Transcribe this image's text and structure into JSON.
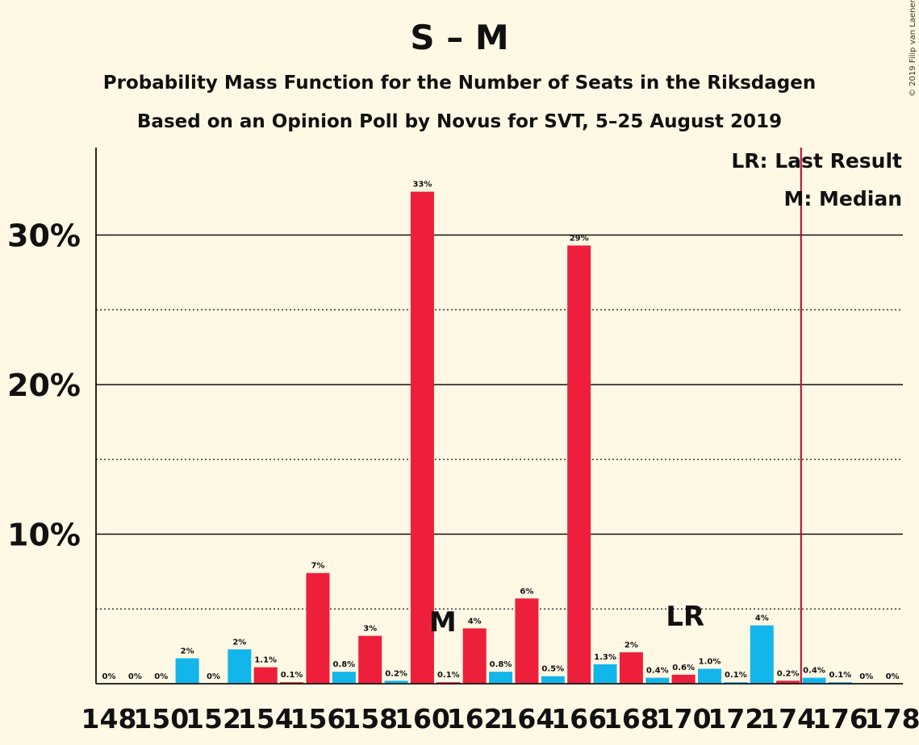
{
  "title": "S – M",
  "subtitle1": "Probability Mass Function for the Number of Seats in the Riksdagen",
  "subtitle2": "Based on an Opinion Poll by Novus for SVT, 5–25 August 2019",
  "copyright": "© 2019 Filip van Laenen",
  "legend": {
    "last_result": "LR: Last Result",
    "median": "M: Median"
  },
  "colors": {
    "background": "#FFF8E4",
    "bar_red": "#EE1F3A",
    "bar_blue": "#12B6EA",
    "marker_line": "#C2002E",
    "text": "#111111"
  },
  "chart_data": {
    "type": "bar",
    "xlabel": "",
    "ylabel": "",
    "ylim": [
      0,
      35
    ],
    "y_ticks": [
      10,
      20,
      30
    ],
    "y_tick_labels": [
      "10%",
      "20%",
      "30%"
    ],
    "y_minor_gridlines": [
      5,
      15,
      25
    ],
    "x_tick_labels": [
      "148",
      "150",
      "152",
      "154",
      "156",
      "158",
      "160",
      "162",
      "164",
      "166",
      "168",
      "170",
      "172",
      "174",
      "176",
      "178"
    ],
    "categories": [
      148,
      149,
      150,
      151,
      152,
      153,
      154,
      155,
      156,
      157,
      158,
      159,
      160,
      161,
      162,
      163,
      164,
      165,
      166,
      167,
      168,
      169,
      170,
      171,
      172,
      173,
      174,
      175,
      176,
      177,
      178
    ],
    "values": [
      0,
      0,
      0,
      1.7,
      0,
      2.3,
      1.1,
      0.1,
      7.4,
      0.8,
      3.2,
      0.2,
      32.9,
      0.1,
      3.7,
      0.8,
      5.7,
      0.5,
      29.3,
      1.3,
      2.1,
      0.4,
      0.6,
      1.0,
      0.1,
      3.9,
      0.2,
      0.4,
      0.1,
      0,
      0
    ],
    "labels": [
      "0%",
      "0%",
      "0%",
      "2%",
      "0%",
      "2%",
      "1.1%",
      "0.1%",
      "7%",
      "0.8%",
      "3%",
      "0.2%",
      "33%",
      "0.1%",
      "4%",
      "0.8%",
      "6%",
      "0.5%",
      "29%",
      "1.3%",
      "2%",
      "0.4%",
      "0.6%",
      "1.0%",
      "0.1%",
      "4%",
      "0.2%",
      "0.4%",
      "0.1%",
      "0%",
      "0%"
    ],
    "colors": [
      "blue",
      "blue",
      "blue",
      "blue",
      "blue",
      "blue",
      "red",
      "red",
      "red",
      "blue",
      "red",
      "blue",
      "red",
      "red",
      "red",
      "blue",
      "red",
      "blue",
      "red",
      "blue",
      "red",
      "blue",
      "red",
      "blue",
      "blue",
      "blue",
      "red",
      "blue",
      "blue",
      "blue",
      "blue"
    ],
    "median_seat": 161,
    "median_label": "M",
    "last_result_seat": 170,
    "last_result_label": "LR",
    "majority_line_seat": 174.5
  }
}
